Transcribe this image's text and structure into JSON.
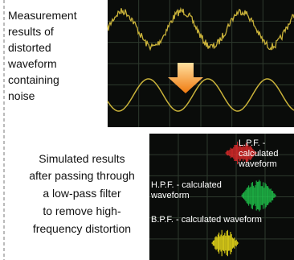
{
  "left_note": {
    "lines": [
      "Measurement",
      "results of",
      "distorted",
      "waveform",
      "containing",
      "noise"
    ]
  },
  "caption": {
    "lines": [
      "Simulated results",
      "after passing through",
      "a low-pass filter",
      "to remove high-",
      "frequency distortion"
    ]
  },
  "filter_labels": {
    "lpf": [
      "L.P.F. -",
      "calculated",
      "waveform"
    ],
    "hpf": [
      "H.P.F. - calculated",
      "waveform"
    ],
    "bpf": [
      "B.P.F. - calculated waveform"
    ]
  }
}
